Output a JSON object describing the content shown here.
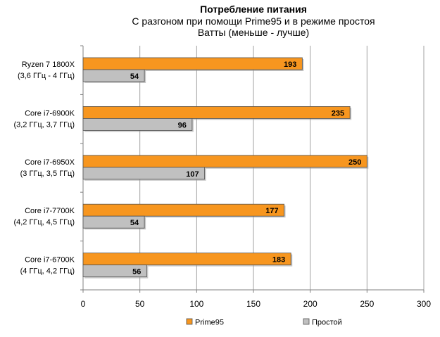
{
  "chart_data": {
    "type": "bar",
    "orientation": "horizontal",
    "title": "Потребление питания",
    "subtitle": [
      "С разгоном при помощи Prime95 и в режиме простоя",
      "Ватты (меньше - лучше)"
    ],
    "categories": [
      [
        "Ryzen 7 1800X",
        "(3,6 ГГц - 4 ГГц)"
      ],
      [
        "Core i7-6900K",
        "(3,2 ГГц, 3,7 ГГц)"
      ],
      [
        "Core i7-6950X",
        "(3 ГГц, 3,5 ГГц)"
      ],
      [
        "Core i7-7700K",
        "(4,2 ГГц, 4,5 ГГц)"
      ],
      [
        "Core i7-6700K",
        "(4 ГГц, 4,2 ГГц)"
      ]
    ],
    "series": [
      {
        "name": "Prime95",
        "color": "#f7961f",
        "values": [
          193,
          235,
          250,
          177,
          183
        ]
      },
      {
        "name": "Простой",
        "color": "#c0c0c0",
        "values": [
          54,
          96,
          107,
          54,
          56
        ]
      }
    ],
    "xlim": [
      0,
      300
    ],
    "xticks": [
      0,
      50,
      100,
      150,
      200,
      250,
      300
    ],
    "grid": true,
    "legend_position": "bottom",
    "data_labels": true
  }
}
